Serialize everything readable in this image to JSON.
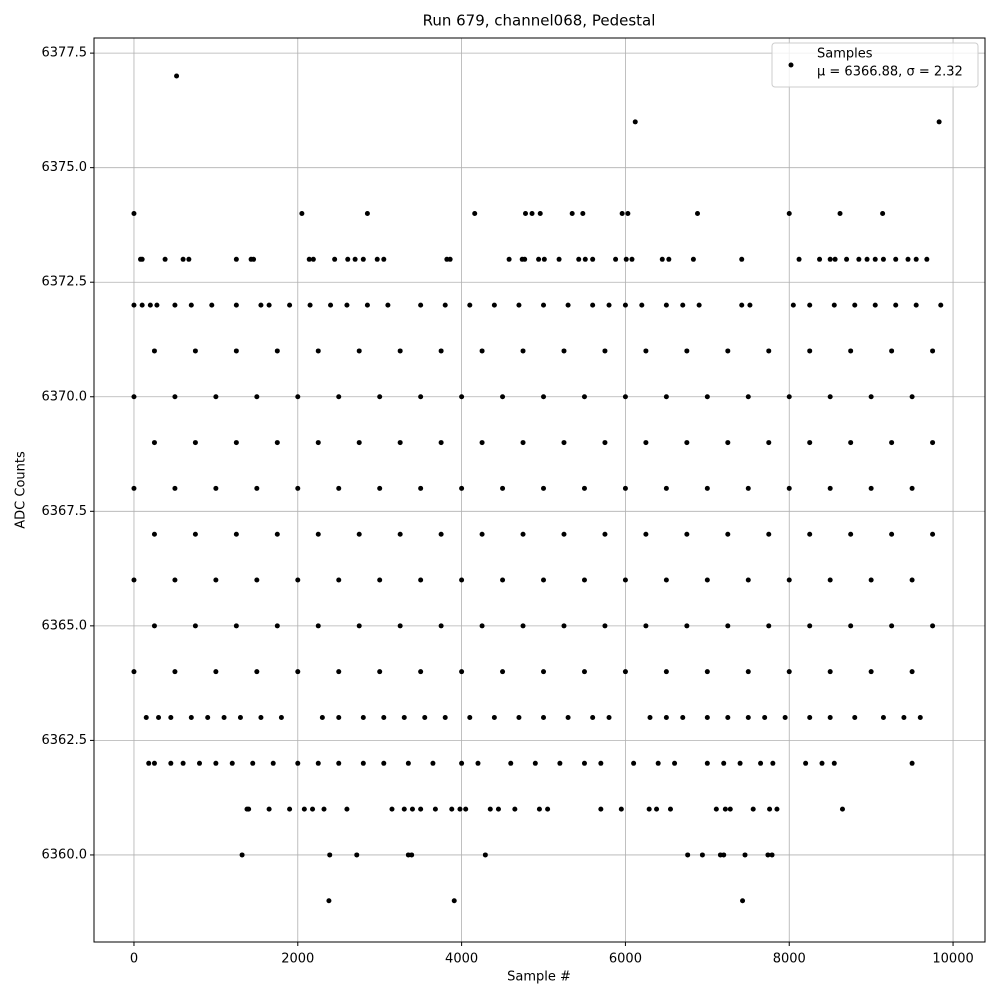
{
  "chart_data": {
    "type": "scatter",
    "title": "Run 679, channel068, Pedestal",
    "x_label": "Sample #",
    "y_label": "ADC Counts",
    "annotation": "μ = 6366.88, σ = 2.32",
    "legend_position": "upper right",
    "grid": true,
    "xlim": [
      -488,
      10390
    ],
    "ylim": [
      6358.1,
      6377.83
    ],
    "xticks": [
      0,
      2000,
      4000,
      6000,
      8000,
      10000
    ],
    "yticks": [
      {
        "value": 6360,
        "label": "6360.0"
      },
      {
        "value": 6362.5,
        "label": "6362.5"
      },
      {
        "value": 6365,
        "label": "6365.0"
      },
      {
        "value": 6367.5,
        "label": "6367.5"
      },
      {
        "value": 6370,
        "label": "6370.0"
      },
      {
        "value": 6372.5,
        "label": "6372.5"
      },
      {
        "value": 6375,
        "label": "6375.0"
      },
      {
        "value": 6377.5,
        "label": "6377.5"
      }
    ],
    "series": [
      {
        "name": "Samples",
        "color": "#000000",
        "x": [
          520,
          6120,
          9830,
          2380,
          3910,
          7430,
          1320,
          2390,
          2720,
          3350,
          3390,
          4290,
          6760,
          6940,
          7160,
          7200,
          7460,
          7740,
          7790,
          1380,
          1400,
          1650,
          1900,
          2080,
          2180,
          2320,
          2600,
          3150,
          3300,
          3400,
          3500,
          3680,
          3880,
          3980,
          4050,
          4350,
          4450,
          4650,
          4950,
          5050,
          5700,
          5950,
          6290,
          6380,
          6550,
          7110,
          7220,
          7280,
          7560,
          7760,
          7850,
          8650,
          0,
          2050,
          2850,
          4160,
          4780,
          4860,
          4960,
          5350,
          5480,
          5960,
          6030,
          6880,
          8000,
          8620,
          9140,
          80,
          100,
          380,
          600,
          670,
          1250,
          1430,
          1460,
          2140,
          2190,
          2450,
          2610,
          2700,
          2800,
          2970,
          3050,
          3820,
          3860,
          4580,
          4740,
          4770,
          4940,
          5010,
          5190,
          5430,
          5510,
          5600,
          5880,
          6010,
          6080,
          6450,
          6530,
          6830,
          7420,
          8120,
          8370,
          8500,
          8560,
          8700,
          8850,
          8950,
          9050,
          9150,
          9300,
          9450,
          9550,
          9680,
          0,
          100,
          200,
          280,
          500,
          700,
          950,
          1250,
          1550,
          1650,
          1900,
          2150,
          2400,
          2600,
          2850,
          3100,
          3500,
          3800,
          4100,
          4400,
          4700,
          5000,
          5300,
          5600,
          5800,
          6000,
          6200,
          6500,
          6700,
          6900,
          7420,
          7520,
          8050,
          8250,
          8550,
          8800,
          9050,
          9300,
          9550,
          9850,
          150,
          300,
          450,
          700,
          900,
          1100,
          1300,
          1550,
          1800,
          2300,
          2500,
          2800,
          3050,
          3300,
          3550,
          3800,
          4100,
          4400,
          4700,
          5000,
          5300,
          5600,
          5800,
          6300,
          6500,
          6700,
          7000,
          7250,
          7500,
          7700,
          7950,
          8250,
          8500,
          8800,
          9150,
          9400,
          9600,
          180,
          250,
          450,
          600,
          800,
          1000,
          1200,
          1450,
          1700,
          2000,
          2250,
          2500,
          2800,
          3050,
          3350,
          3650,
          4000,
          4200,
          4600,
          4900,
          5200,
          5500,
          5700,
          6100,
          6400,
          6600,
          7000,
          7200,
          7400,
          7650,
          7800,
          8200,
          8400,
          8550,
          9500,
          0,
          500,
          1000,
          1500,
          2000,
          2500,
          3000,
          3500,
          4000,
          4500,
          5000,
          5500,
          6000,
          6500,
          7000,
          7500,
          8000,
          8500,
          9000,
          9500,
          250,
          750,
          1250,
          1750,
          2250,
          2750,
          3250,
          3750,
          4250,
          4750,
          5250,
          5750,
          6250,
          6750,
          7250,
          7750,
          8250,
          8750,
          9250,
          9750,
          0,
          500,
          1000,
          1500,
          2000,
          2500,
          3000,
          3500,
          4000,
          4500,
          5000,
          5500,
          6000,
          6500,
          7000,
          7500,
          8000,
          8500,
          9000,
          9500,
          250,
          750,
          1250,
          1750,
          2250,
          2750,
          3250,
          3750,
          4250,
          4750,
          5250,
          5750,
          6250,
          6750,
          7250,
          7750,
          8250,
          8750,
          9250,
          9750,
          0,
          500,
          1000,
          1500,
          2000,
          2500,
          3000,
          3500,
          4000,
          4500,
          5000,
          5500,
          6000,
          6500,
          7000,
          7500,
          8000,
          8500,
          9000,
          9500,
          250,
          750,
          1250,
          1750,
          2250,
          2750,
          3250,
          3750,
          4250,
          4750,
          5250,
          5750,
          6250,
          6750,
          7250,
          7750,
          8250,
          8750,
          9250,
          9750,
          0,
          500,
          1000,
          1500,
          2000,
          2500,
          3000,
          3500,
          4000,
          4500,
          5000,
          5500,
          6000,
          6500,
          7000,
          7500,
          8000,
          8500,
          9000,
          9500,
          250,
          750,
          1250,
          1750,
          2250,
          2750,
          3250,
          3750,
          4250,
          4750,
          5250,
          5750,
          6250,
          6750,
          7250,
          7750,
          8250,
          8750,
          9250,
          9750
        ],
        "values": [
          6377,
          6376,
          6376,
          6359,
          6359,
          6359,
          6360,
          6360,
          6360,
          6360,
          6360,
          6360,
          6360,
          6360,
          6360,
          6360,
          6360,
          6360,
          6360,
          6361,
          6361,
          6361,
          6361,
          6361,
          6361,
          6361,
          6361,
          6361,
          6361,
          6361,
          6361,
          6361,
          6361,
          6361,
          6361,
          6361,
          6361,
          6361,
          6361,
          6361,
          6361,
          6361,
          6361,
          6361,
          6361,
          6361,
          6361,
          6361,
          6361,
          6361,
          6361,
          6361,
          6374,
          6374,
          6374,
          6374,
          6374,
          6374,
          6374,
          6374,
          6374,
          6374,
          6374,
          6374,
          6374,
          6374,
          6374,
          6373,
          6373,
          6373,
          6373,
          6373,
          6373,
          6373,
          6373,
          6373,
          6373,
          6373,
          6373,
          6373,
          6373,
          6373,
          6373,
          6373,
          6373,
          6373,
          6373,
          6373,
          6373,
          6373,
          6373,
          6373,
          6373,
          6373,
          6373,
          6373,
          6373,
          6373,
          6373,
          6373,
          6373,
          6373,
          6373,
          6373,
          6373,
          6373,
          6373,
          6373,
          6373,
          6373,
          6373,
          6373,
          6373,
          6373,
          6372,
          6372,
          6372,
          6372,
          6372,
          6372,
          6372,
          6372,
          6372,
          6372,
          6372,
          6372,
          6372,
          6372,
          6372,
          6372,
          6372,
          6372,
          6372,
          6372,
          6372,
          6372,
          6372,
          6372,
          6372,
          6372,
          6372,
          6372,
          6372,
          6372,
          6372,
          6372,
          6372,
          6372,
          6372,
          6372,
          6372,
          6372,
          6372,
          6372,
          6363,
          6363,
          6363,
          6363,
          6363,
          6363,
          6363,
          6363,
          6363,
          6363,
          6363,
          6363,
          6363,
          6363,
          6363,
          6363,
          6363,
          6363,
          6363,
          6363,
          6363,
          6363,
          6363,
          6363,
          6363,
          6363,
          6363,
          6363,
          6363,
          6363,
          6363,
          6363,
          6363,
          6363,
          6363,
          6363,
          6363,
          6362,
          6362,
          6362,
          6362,
          6362,
          6362,
          6362,
          6362,
          6362,
          6362,
          6362,
          6362,
          6362,
          6362,
          6362,
          6362,
          6362,
          6362,
          6362,
          6362,
          6362,
          6362,
          6362,
          6362,
          6362,
          6362,
          6362,
          6362,
          6362,
          6362,
          6362,
          6362,
          6362,
          6362,
          6362,
          6364,
          6364,
          6364,
          6364,
          6364,
          6364,
          6364,
          6364,
          6364,
          6364,
          6364,
          6364,
          6364,
          6364,
          6364,
          6364,
          6364,
          6364,
          6364,
          6364,
          6365,
          6365,
          6365,
          6365,
          6365,
          6365,
          6365,
          6365,
          6365,
          6365,
          6365,
          6365,
          6365,
          6365,
          6365,
          6365,
          6365,
          6365,
          6365,
          6365,
          6366,
          6366,
          6366,
          6366,
          6366,
          6366,
          6366,
          6366,
          6366,
          6366,
          6366,
          6366,
          6366,
          6366,
          6366,
          6366,
          6366,
          6366,
          6366,
          6366,
          6367,
          6367,
          6367,
          6367,
          6367,
          6367,
          6367,
          6367,
          6367,
          6367,
          6367,
          6367,
          6367,
          6367,
          6367,
          6367,
          6367,
          6367,
          6367,
          6367,
          6368,
          6368,
          6368,
          6368,
          6368,
          6368,
          6368,
          6368,
          6368,
          6368,
          6368,
          6368,
          6368,
          6368,
          6368,
          6368,
          6368,
          6368,
          6368,
          6368,
          6369,
          6369,
          6369,
          6369,
          6369,
          6369,
          6369,
          6369,
          6369,
          6369,
          6369,
          6369,
          6369,
          6369,
          6369,
          6369,
          6369,
          6369,
          6369,
          6369,
          6370,
          6370,
          6370,
          6370,
          6370,
          6370,
          6370,
          6370,
          6370,
          6370,
          6370,
          6370,
          6370,
          6370,
          6370,
          6370,
          6370,
          6370,
          6370,
          6370,
          6371,
          6371,
          6371,
          6371,
          6371,
          6371,
          6371,
          6371,
          6371,
          6371,
          6371,
          6371,
          6371,
          6371,
          6371,
          6371,
          6371,
          6371,
          6371,
          6371
        ]
      }
    ]
  }
}
